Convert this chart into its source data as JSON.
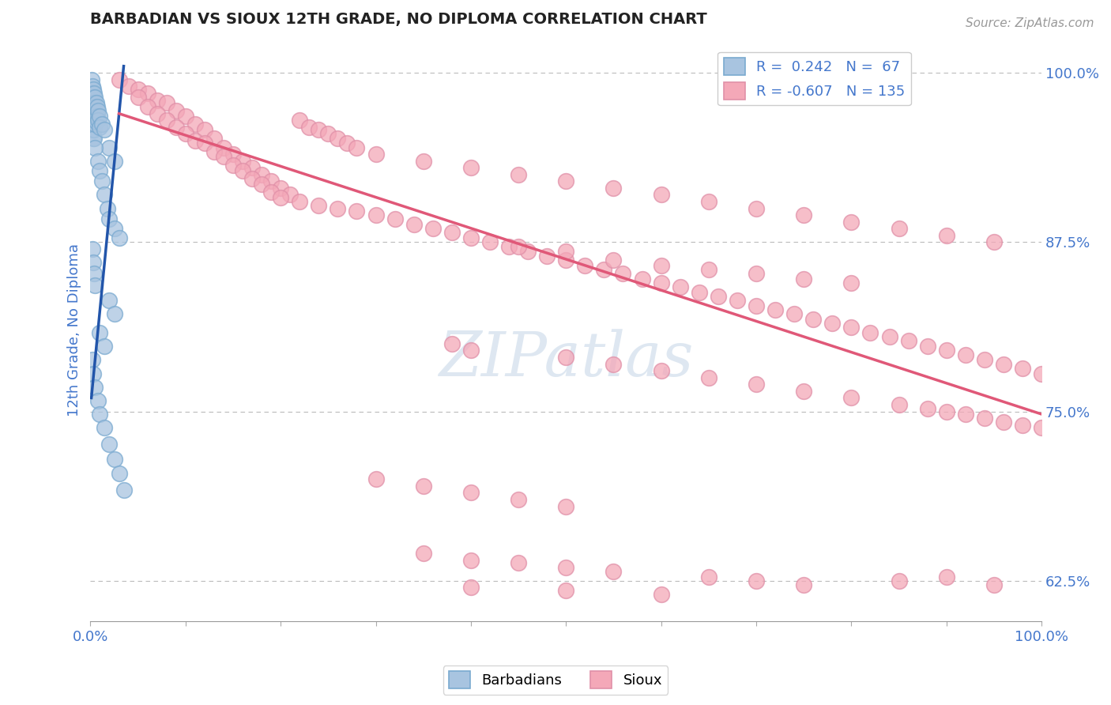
{
  "title": "BARBADIAN VS SIOUX 12TH GRADE, NO DIPLOMA CORRELATION CHART",
  "source_text": "Source: ZipAtlas.com",
  "ylabel": "12th Grade, No Diploma",
  "xlim": [
    0.0,
    1.0
  ],
  "ylim": [
    0.595,
    1.025
  ],
  "yticks": [
    0.625,
    0.75,
    0.875,
    1.0
  ],
  "ytick_labels": [
    "62.5%",
    "75.0%",
    "87.5%",
    "100.0%"
  ],
  "barbadian_color": "#a8c4e0",
  "sioux_color": "#f4a8b8",
  "barbadian_line_color": "#2255aa",
  "sioux_line_color": "#e05878",
  "R_barbadian": 0.242,
  "N_barbadian": 67,
  "R_sioux": -0.607,
  "N_sioux": 135,
  "background_color": "#ffffff",
  "grid_color": "#bbbbbb",
  "axis_label_color": "#4477cc",
  "watermark_text": "ZIPatlas",
  "barbadian_points": [
    [
      0.001,
      0.995
    ],
    [
      0.001,
      0.985
    ],
    [
      0.001,
      0.98
    ],
    [
      0.001,
      0.975
    ],
    [
      0.002,
      0.99
    ],
    [
      0.002,
      0.985
    ],
    [
      0.002,
      0.978
    ],
    [
      0.002,
      0.972
    ],
    [
      0.002,
      0.968
    ],
    [
      0.002,
      0.963
    ],
    [
      0.002,
      0.958
    ],
    [
      0.003,
      0.988
    ],
    [
      0.003,
      0.982
    ],
    [
      0.003,
      0.976
    ],
    [
      0.003,
      0.97
    ],
    [
      0.003,
      0.964
    ],
    [
      0.003,
      0.958
    ],
    [
      0.003,
      0.952
    ],
    [
      0.004,
      0.985
    ],
    [
      0.004,
      0.978
    ],
    [
      0.004,
      0.972
    ],
    [
      0.004,
      0.965
    ],
    [
      0.004,
      0.958
    ],
    [
      0.004,
      0.952
    ],
    [
      0.005,
      0.982
    ],
    [
      0.005,
      0.975
    ],
    [
      0.005,
      0.968
    ],
    [
      0.005,
      0.962
    ],
    [
      0.006,
      0.978
    ],
    [
      0.006,
      0.971
    ],
    [
      0.006,
      0.964
    ],
    [
      0.007,
      0.975
    ],
    [
      0.007,
      0.968
    ],
    [
      0.008,
      0.972
    ],
    [
      0.008,
      0.965
    ],
    [
      0.01,
      0.968
    ],
    [
      0.01,
      0.96
    ],
    [
      0.012,
      0.962
    ],
    [
      0.015,
      0.958
    ],
    [
      0.02,
      0.945
    ],
    [
      0.025,
      0.935
    ],
    [
      0.005,
      0.945
    ],
    [
      0.008,
      0.935
    ],
    [
      0.01,
      0.928
    ],
    [
      0.012,
      0.92
    ],
    [
      0.015,
      0.91
    ],
    [
      0.018,
      0.9
    ],
    [
      0.02,
      0.892
    ],
    [
      0.025,
      0.885
    ],
    [
      0.03,
      0.878
    ],
    [
      0.002,
      0.87
    ],
    [
      0.003,
      0.86
    ],
    [
      0.004,
      0.852
    ],
    [
      0.005,
      0.843
    ],
    [
      0.02,
      0.832
    ],
    [
      0.025,
      0.822
    ],
    [
      0.01,
      0.808
    ],
    [
      0.015,
      0.798
    ],
    [
      0.002,
      0.788
    ],
    [
      0.003,
      0.778
    ],
    [
      0.005,
      0.768
    ],
    [
      0.008,
      0.758
    ],
    [
      0.01,
      0.748
    ],
    [
      0.015,
      0.738
    ],
    [
      0.02,
      0.726
    ],
    [
      0.025,
      0.715
    ],
    [
      0.03,
      0.704
    ],
    [
      0.035,
      0.692
    ]
  ],
  "sioux_points": [
    [
      0.03,
      0.995
    ],
    [
      0.04,
      0.99
    ],
    [
      0.05,
      0.988
    ],
    [
      0.06,
      0.985
    ],
    [
      0.05,
      0.982
    ],
    [
      0.07,
      0.98
    ],
    [
      0.08,
      0.978
    ],
    [
      0.06,
      0.975
    ],
    [
      0.09,
      0.972
    ],
    [
      0.07,
      0.97
    ],
    [
      0.1,
      0.968
    ],
    [
      0.08,
      0.965
    ],
    [
      0.11,
      0.962
    ],
    [
      0.09,
      0.96
    ],
    [
      0.12,
      0.958
    ],
    [
      0.1,
      0.955
    ],
    [
      0.13,
      0.952
    ],
    [
      0.11,
      0.95
    ],
    [
      0.12,
      0.948
    ],
    [
      0.14,
      0.945
    ],
    [
      0.13,
      0.942
    ],
    [
      0.15,
      0.94
    ],
    [
      0.14,
      0.938
    ],
    [
      0.16,
      0.935
    ],
    [
      0.15,
      0.932
    ],
    [
      0.17,
      0.93
    ],
    [
      0.16,
      0.928
    ],
    [
      0.18,
      0.925
    ],
    [
      0.17,
      0.922
    ],
    [
      0.19,
      0.92
    ],
    [
      0.18,
      0.918
    ],
    [
      0.2,
      0.915
    ],
    [
      0.19,
      0.912
    ],
    [
      0.21,
      0.91
    ],
    [
      0.2,
      0.908
    ],
    [
      0.22,
      0.965
    ],
    [
      0.23,
      0.96
    ],
    [
      0.24,
      0.958
    ],
    [
      0.25,
      0.955
    ],
    [
      0.26,
      0.952
    ],
    [
      0.27,
      0.948
    ],
    [
      0.28,
      0.945
    ],
    [
      0.3,
      0.94
    ],
    [
      0.22,
      0.905
    ],
    [
      0.24,
      0.902
    ],
    [
      0.26,
      0.9
    ],
    [
      0.28,
      0.898
    ],
    [
      0.3,
      0.895
    ],
    [
      0.32,
      0.892
    ],
    [
      0.34,
      0.888
    ],
    [
      0.36,
      0.885
    ],
    [
      0.38,
      0.882
    ],
    [
      0.4,
      0.878
    ],
    [
      0.42,
      0.875
    ],
    [
      0.44,
      0.872
    ],
    [
      0.46,
      0.868
    ],
    [
      0.48,
      0.865
    ],
    [
      0.5,
      0.862
    ],
    [
      0.52,
      0.858
    ],
    [
      0.54,
      0.855
    ],
    [
      0.56,
      0.852
    ],
    [
      0.58,
      0.848
    ],
    [
      0.6,
      0.845
    ],
    [
      0.62,
      0.842
    ],
    [
      0.64,
      0.838
    ],
    [
      0.66,
      0.835
    ],
    [
      0.68,
      0.832
    ],
    [
      0.7,
      0.828
    ],
    [
      0.72,
      0.825
    ],
    [
      0.74,
      0.822
    ],
    [
      0.76,
      0.818
    ],
    [
      0.78,
      0.815
    ],
    [
      0.8,
      0.812
    ],
    [
      0.82,
      0.808
    ],
    [
      0.84,
      0.805
    ],
    [
      0.86,
      0.802
    ],
    [
      0.88,
      0.798
    ],
    [
      0.9,
      0.795
    ],
    [
      0.92,
      0.792
    ],
    [
      0.94,
      0.788
    ],
    [
      0.96,
      0.785
    ],
    [
      0.98,
      0.782
    ],
    [
      1.0,
      0.778
    ],
    [
      0.35,
      0.935
    ],
    [
      0.4,
      0.93
    ],
    [
      0.45,
      0.925
    ],
    [
      0.5,
      0.92
    ],
    [
      0.55,
      0.915
    ],
    [
      0.6,
      0.91
    ],
    [
      0.65,
      0.905
    ],
    [
      0.7,
      0.9
    ],
    [
      0.75,
      0.895
    ],
    [
      0.8,
      0.89
    ],
    [
      0.85,
      0.885
    ],
    [
      0.9,
      0.88
    ],
    [
      0.95,
      0.875
    ],
    [
      0.45,
      0.872
    ],
    [
      0.5,
      0.868
    ],
    [
      0.55,
      0.862
    ],
    [
      0.6,
      0.858
    ],
    [
      0.65,
      0.855
    ],
    [
      0.7,
      0.852
    ],
    [
      0.75,
      0.848
    ],
    [
      0.8,
      0.845
    ],
    [
      0.38,
      0.8
    ],
    [
      0.4,
      0.795
    ],
    [
      0.5,
      0.79
    ],
    [
      0.55,
      0.785
    ],
    [
      0.6,
      0.78
    ],
    [
      0.65,
      0.775
    ],
    [
      0.7,
      0.77
    ],
    [
      0.75,
      0.765
    ],
    [
      0.8,
      0.76
    ],
    [
      0.85,
      0.755
    ],
    [
      0.88,
      0.752
    ],
    [
      0.9,
      0.75
    ],
    [
      0.92,
      0.748
    ],
    [
      0.94,
      0.745
    ],
    [
      0.96,
      0.742
    ],
    [
      0.98,
      0.74
    ],
    [
      1.0,
      0.738
    ],
    [
      0.3,
      0.7
    ],
    [
      0.35,
      0.695
    ],
    [
      0.4,
      0.69
    ],
    [
      0.45,
      0.685
    ],
    [
      0.5,
      0.68
    ],
    [
      0.35,
      0.645
    ],
    [
      0.4,
      0.64
    ],
    [
      0.45,
      0.638
    ],
    [
      0.5,
      0.635
    ],
    [
      0.55,
      0.632
    ],
    [
      0.65,
      0.628
    ],
    [
      0.7,
      0.625
    ],
    [
      0.75,
      0.622
    ],
    [
      0.85,
      0.625
    ],
    [
      0.9,
      0.628
    ],
    [
      0.4,
      0.62
    ],
    [
      0.5,
      0.618
    ],
    [
      0.6,
      0.615
    ],
    [
      0.95,
      0.622
    ]
  ],
  "barb_trend_x": [
    0.001,
    0.035
  ],
  "barb_trend_y": [
    0.76,
    1.005
  ],
  "sioux_trend_x": [
    0.03,
    1.0
  ],
  "sioux_trend_y": [
    0.97,
    0.748
  ]
}
